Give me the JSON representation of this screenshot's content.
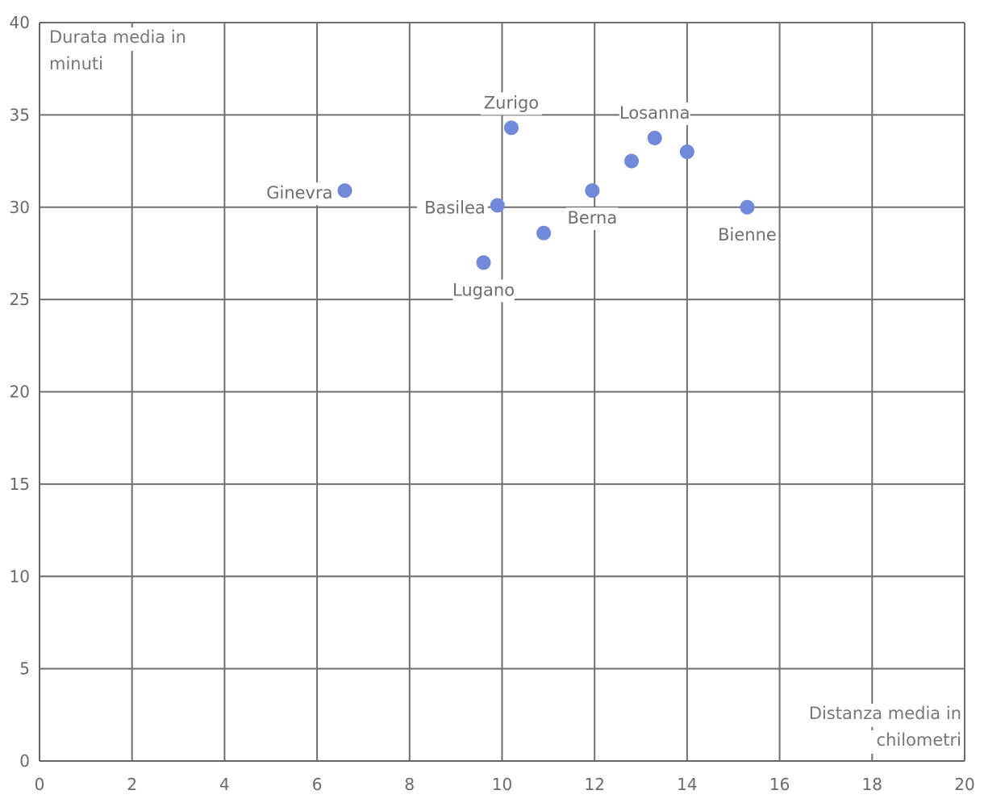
{
  "chart_data": {
    "type": "scatter",
    "xlabel_lines": [
      "Distanza media in",
      "chilometri"
    ],
    "ylabel_lines": [
      "Durata media in",
      "minuti"
    ],
    "xlim": [
      0,
      20
    ],
    "ylim": [
      0,
      40
    ],
    "x_ticks": [
      "0",
      "2",
      "4",
      "6",
      "8",
      "10",
      "12",
      "14",
      "16",
      "18",
      "20"
    ],
    "y_ticks": [
      "0",
      "5",
      "10",
      "15",
      "20",
      "25",
      "30",
      "35",
      "40"
    ],
    "grid": true,
    "marker_color": "#7189d9",
    "grid_color": "#6f6f6f",
    "text_color": "#6f6f6f",
    "points": [
      {
        "label": "Ginevra",
        "x": 6.6,
        "y": 30.9,
        "label_side": "left"
      },
      {
        "label": "Zurigo",
        "x": 10.2,
        "y": 34.3,
        "label_side": "above"
      },
      {
        "label": "Basilea",
        "x": 9.9,
        "y": 30.1,
        "label_side": "left"
      },
      {
        "label": "Lugano",
        "x": 9.6,
        "y": 27.0,
        "label_side": "below"
      },
      {
        "label": "",
        "x": 10.9,
        "y": 28.6,
        "label_side": "none"
      },
      {
        "label": "Berna",
        "x": 11.95,
        "y": 30.9,
        "label_side": "below"
      },
      {
        "label": "",
        "x": 12.8,
        "y": 32.5,
        "label_side": "none"
      },
      {
        "label": "Losanna",
        "x": 13.3,
        "y": 33.75,
        "label_side": "above-left"
      },
      {
        "label": "",
        "x": 14.0,
        "y": 33.0,
        "label_side": "none"
      },
      {
        "label": "Bienne",
        "x": 15.3,
        "y": 30.0,
        "label_side": "below"
      }
    ]
  }
}
